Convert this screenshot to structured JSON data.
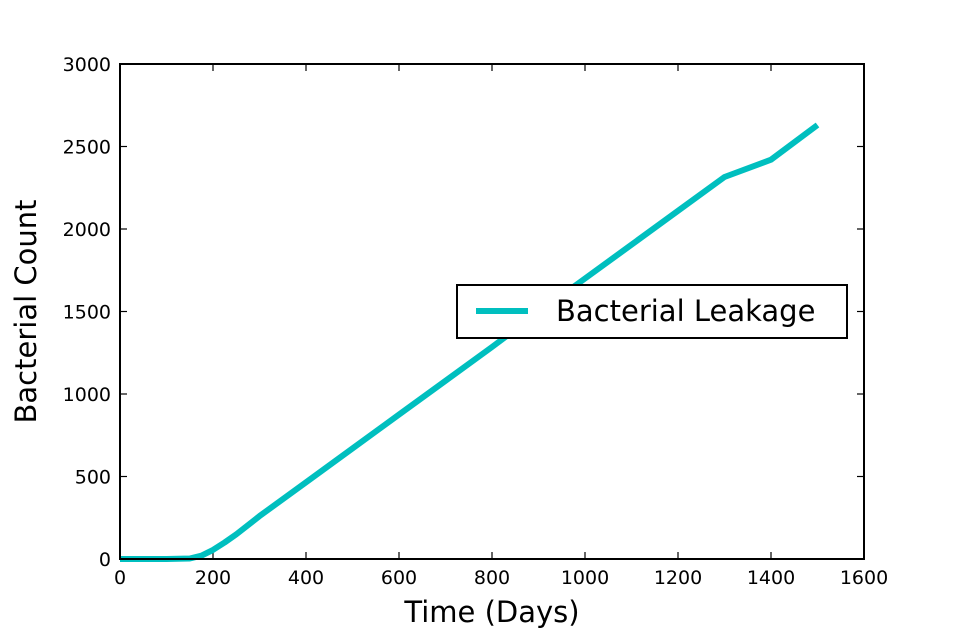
{
  "chart_data": {
    "type": "line",
    "title": "",
    "xlabel": "Time (Days)",
    "ylabel": "Bacterial Count",
    "xlim": [
      0,
      1600
    ],
    "ylim": [
      0,
      3000
    ],
    "xticks": [
      "0",
      "200",
      "400",
      "600",
      "800",
      "1000",
      "1200",
      "1400",
      "1600"
    ],
    "yticks": [
      "0",
      "500",
      "1000",
      "1500",
      "2000",
      "2500",
      "3000"
    ],
    "grid": false,
    "legend_position": "center-right",
    "series": [
      {
        "name": "Bacterial Leakage",
        "color": "#00bfbf",
        "x": [
          0,
          50,
          100,
          150,
          175,
          200,
          225,
          250,
          300,
          400,
          500,
          600,
          700,
          800,
          900,
          1000,
          1100,
          1200,
          1300,
          1400,
          1500
        ],
        "y": [
          0,
          0,
          0,
          3,
          20,
          55,
          100,
          150,
          260,
          465,
          670,
          875,
          1080,
          1285,
          1495,
          1700,
          1905,
          2110,
          2315,
          2420,
          2630
        ]
      }
    ]
  }
}
